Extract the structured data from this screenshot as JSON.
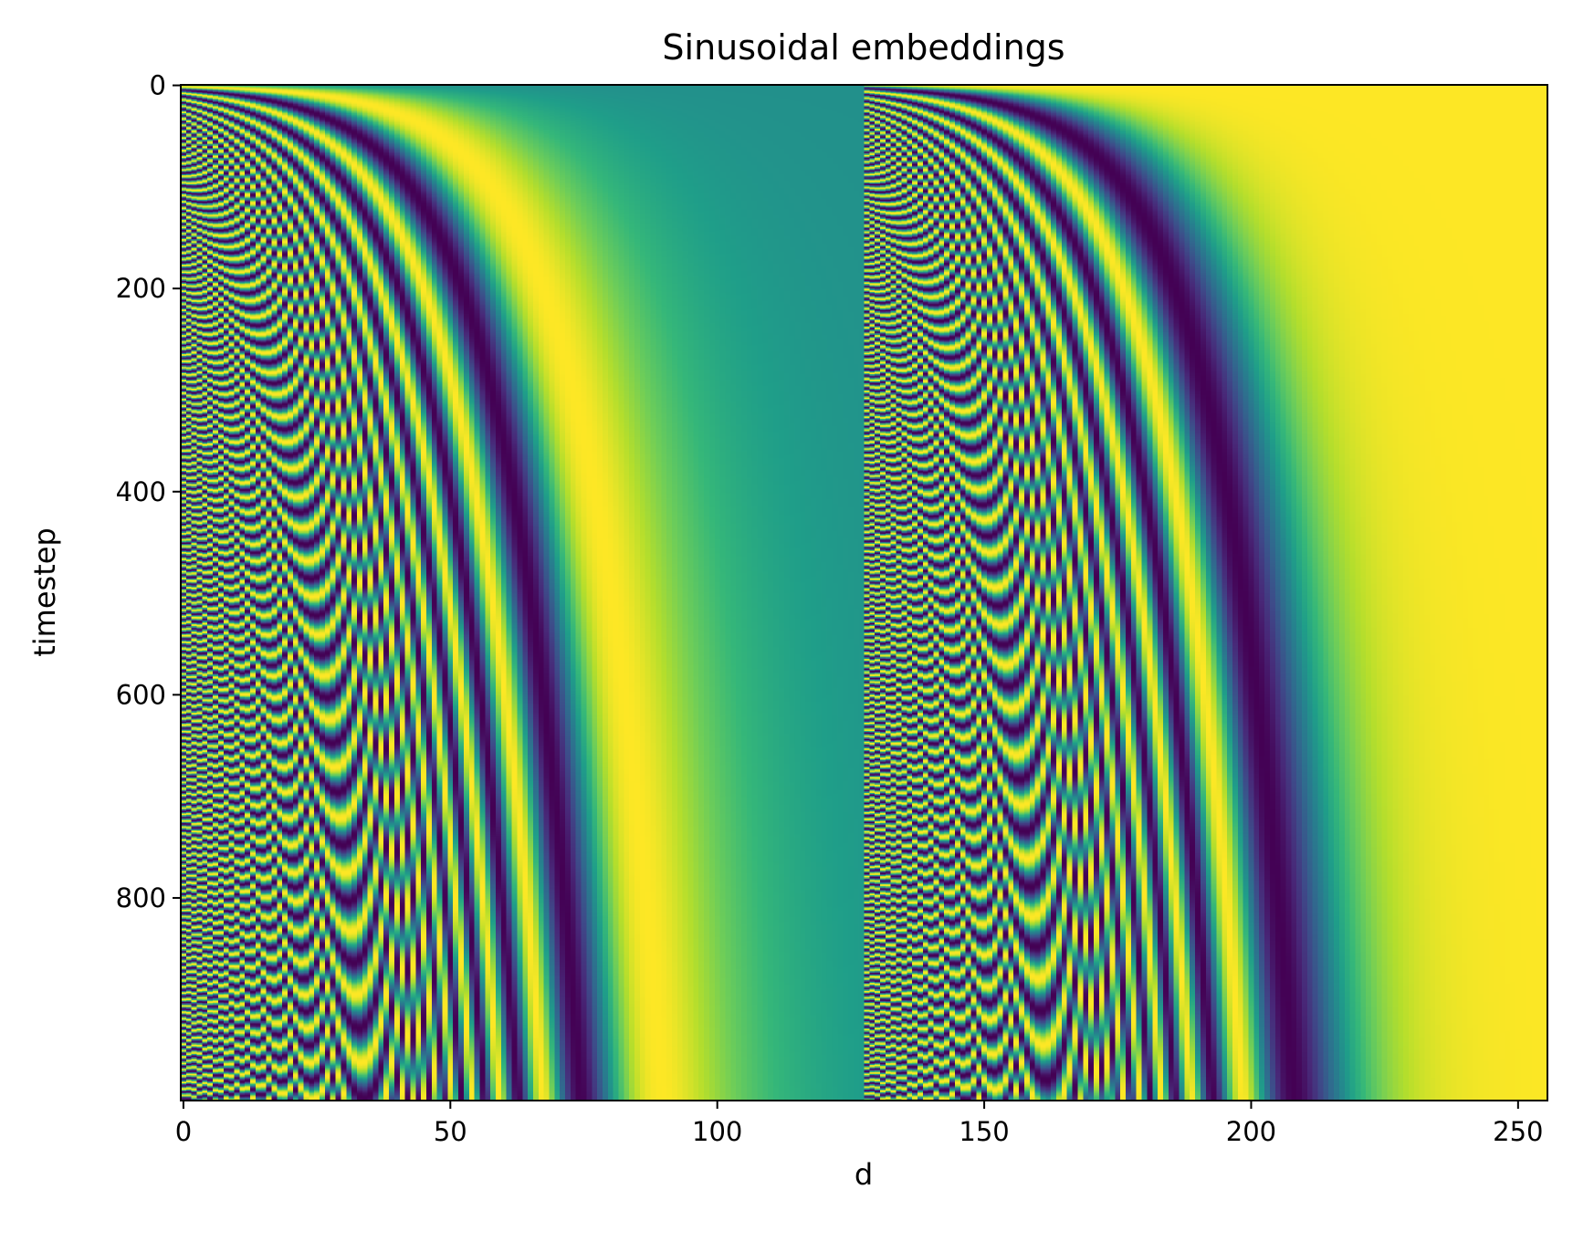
{
  "chart_data": {
    "type": "heatmap",
    "title": "Sinusoidal embeddings",
    "xlabel": "d",
    "ylabel": "timestep",
    "x_range": [
      0,
      255
    ],
    "y_range": [
      0,
      999
    ],
    "y_inverted": true,
    "x_ticks": [
      0,
      50,
      100,
      150,
      200,
      250
    ],
    "y_ticks": [
      0,
      200,
      400,
      600,
      800
    ],
    "colormap": "viridis",
    "value_range": [
      -1,
      1
    ],
    "grid": false,
    "legend": "none",
    "generator": {
      "embedding_dim": 256,
      "half_dim": 128,
      "max_period": 10000,
      "timesteps": 1000,
      "first_half": "sin(t * 10000^(-i/128))",
      "second_half": "cos(t * 10000^(-i/128))"
    }
  }
}
